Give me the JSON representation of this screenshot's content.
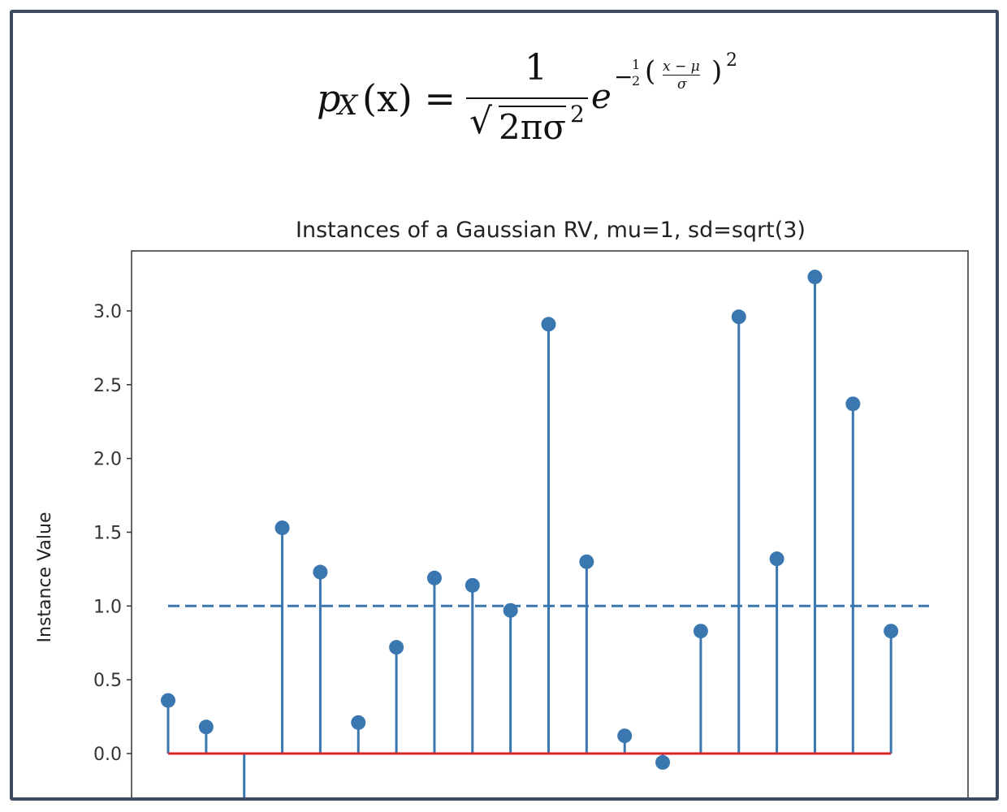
{
  "formula": {
    "lhs_p": "p",
    "lhs_sub": "X",
    "lhs_arg": "(x) =",
    "numerator": "1",
    "sqrt_sign": "√",
    "denominator": "2πσ",
    "denominator_exp": "2",
    "e": "e",
    "exp_minus": "−",
    "exp_half_num": "1",
    "exp_half_den": "2",
    "exp_open": "(",
    "exp_frac_num": "x − μ",
    "exp_frac_den": "σ",
    "exp_close": ")",
    "exp_power": "2"
  },
  "chart_data": {
    "type": "stem",
    "title": "Instances of a Gaussian RV, mu=1, sd=sqrt(3)",
    "xlabel": "",
    "ylabel": "Instance Value",
    "x": [
      0,
      1,
      2,
      3,
      4,
      5,
      6,
      7,
      8,
      9,
      10,
      11,
      12,
      13,
      14,
      15,
      16,
      17,
      18,
      19
    ],
    "values": [
      0.36,
      0.18,
      -0.6,
      1.53,
      1.23,
      0.21,
      0.72,
      1.19,
      1.14,
      0.97,
      2.91,
      1.3,
      0.12,
      -0.06,
      0.83,
      2.96,
      1.32,
      3.23,
      2.37,
      0.83
    ],
    "mean_line": 1.0,
    "baseline": 0.0,
    "yticks": [
      "0.0",
      "0.5",
      "1.0",
      "1.5",
      "2.0",
      "2.5",
      "3.0"
    ],
    "ylim": [
      -0.3,
      3.4
    ],
    "colors": {
      "stem": "#3a76b0",
      "baseline": "#d62728",
      "mean": "#3a76b0"
    }
  }
}
